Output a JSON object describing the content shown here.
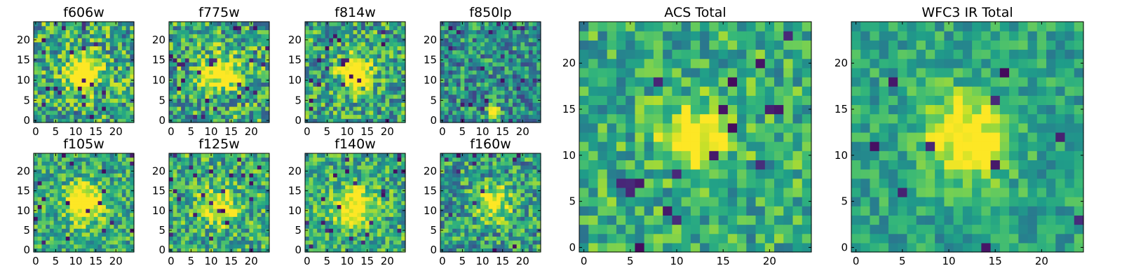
{
  "figure": {
    "background": "#ffffff"
  },
  "colormap": {
    "name": "viridis",
    "stops": [
      "#440154",
      "#482878",
      "#3e4989",
      "#31688e",
      "#26828e",
      "#1f9e89",
      "#35b779",
      "#6ece58",
      "#b5de2b",
      "#fde725"
    ]
  },
  "chart_data": [
    {
      "id": "f606w",
      "type": "heatmap",
      "title": "f606w",
      "grid_size": 25,
      "xticks": [
        0,
        5,
        10,
        15,
        20
      ],
      "yticks": [
        0,
        5,
        10,
        15,
        20
      ],
      "xlim": [
        -0.5,
        24.5
      ],
      "ylim": [
        -0.5,
        24.5
      ],
      "source_x": 12,
      "source_y": 12,
      "peak": 0.75,
      "sigma": 2.8,
      "noise": 0.34,
      "base": 0.6,
      "outliers": 0.035,
      "seed": 11,
      "grid": false
    },
    {
      "id": "f775w",
      "type": "heatmap",
      "title": "f775w",
      "grid_size": 25,
      "xticks": [
        0,
        5,
        10,
        15,
        20
      ],
      "yticks": [
        0,
        5,
        10,
        15,
        20
      ],
      "xlim": [
        -0.5,
        24.5
      ],
      "ylim": [
        -0.5,
        24.5
      ],
      "source_x": 12,
      "source_y": 12,
      "peak": 0.65,
      "sigma": 3.0,
      "noise": 0.34,
      "base": 0.6,
      "outliers": 0.035,
      "seed": 23,
      "grid": false
    },
    {
      "id": "f814w",
      "type": "heatmap",
      "title": "f814w",
      "grid_size": 25,
      "xticks": [
        0,
        5,
        10,
        15,
        20
      ],
      "yticks": [
        0,
        5,
        10,
        15,
        20
      ],
      "xlim": [
        -0.5,
        24.5
      ],
      "ylim": [
        -0.5,
        24.5
      ],
      "source_x": 12,
      "source_y": 12,
      "peak": 0.8,
      "sigma": 2.6,
      "noise": 0.32,
      "base": 0.58,
      "outliers": 0.035,
      "seed": 37,
      "grid": false
    },
    {
      "id": "f850lp",
      "type": "heatmap",
      "title": "f850lp",
      "grid_size": 25,
      "xticks": [
        0,
        5,
        10,
        15,
        20
      ],
      "yticks": [
        0,
        5,
        10,
        15,
        20
      ],
      "xlim": [
        -0.5,
        24.5
      ],
      "ylim": [
        -0.5,
        24.5
      ],
      "source_x": 13,
      "source_y": 2,
      "peak": 0.9,
      "sigma": 1.0,
      "noise": 0.3,
      "base": 0.5,
      "outliers": 0.04,
      "seed": 53,
      "grid": false
    },
    {
      "id": "f105w",
      "type": "heatmap",
      "title": "f105w",
      "grid_size": 25,
      "xticks": [
        0,
        5,
        10,
        15,
        20
      ],
      "yticks": [
        0,
        5,
        10,
        15,
        20
      ],
      "xlim": [
        -0.5,
        24.5
      ],
      "ylim": [
        -0.5,
        24.5
      ],
      "source_x": 12,
      "source_y": 12,
      "peak": 0.7,
      "sigma": 3.2,
      "noise": 0.26,
      "base": 0.6,
      "outliers": 0.025,
      "seed": 61,
      "grid": false
    },
    {
      "id": "f125w",
      "type": "heatmap",
      "title": "f125w",
      "grid_size": 25,
      "xticks": [
        0,
        5,
        10,
        15,
        20
      ],
      "yticks": [
        0,
        5,
        10,
        15,
        20
      ],
      "xlim": [
        -0.5,
        24.5
      ],
      "ylim": [
        -0.5,
        24.5
      ],
      "source_x": 12,
      "source_y": 11,
      "peak": 0.55,
      "sigma": 3.0,
      "noise": 0.3,
      "base": 0.6,
      "outliers": 0.03,
      "seed": 73,
      "grid": false
    },
    {
      "id": "f140w",
      "type": "heatmap",
      "title": "f140w",
      "grid_size": 25,
      "xticks": [
        0,
        5,
        10,
        15,
        20
      ],
      "yticks": [
        0,
        5,
        10,
        15,
        20
      ],
      "xlim": [
        -0.5,
        24.5
      ],
      "ylim": [
        -0.5,
        24.5
      ],
      "source_x": 12,
      "source_y": 11,
      "peak": 0.6,
      "sigma": 3.2,
      "noise": 0.28,
      "base": 0.62,
      "outliers": 0.03,
      "seed": 89,
      "grid": false
    },
    {
      "id": "f160w",
      "type": "heatmap",
      "title": "f160w",
      "grid_size": 25,
      "xticks": [
        0,
        5,
        10,
        15,
        20
      ],
      "yticks": [
        0,
        5,
        10,
        15,
        20
      ],
      "xlim": [
        -0.5,
        24.5
      ],
      "ylim": [
        -0.5,
        24.5
      ],
      "source_x": 13,
      "source_y": 12,
      "peak": 0.5,
      "sigma": 3.0,
      "noise": 0.3,
      "base": 0.55,
      "outliers": 0.03,
      "seed": 97,
      "grid": false
    },
    {
      "id": "acs_total",
      "type": "heatmap",
      "title": "ACS Total",
      "grid_size": 25,
      "xticks": [
        0,
        5,
        10,
        15,
        20
      ],
      "yticks": [
        0,
        5,
        10,
        15,
        20
      ],
      "xlim": [
        -0.5,
        24.5
      ],
      "ylim": [
        -0.5,
        24.5
      ],
      "source_x": 12,
      "source_y": 12,
      "peak": 0.55,
      "sigma": 2.5,
      "noise": 0.24,
      "base": 0.62,
      "outliers": 0.03,
      "seed": 101,
      "grid": false
    },
    {
      "id": "wfc3_ir_total",
      "type": "heatmap",
      "title": "WFC3 IR Total",
      "grid_size": 25,
      "xticks": [
        0,
        5,
        10,
        15,
        20
      ],
      "yticks": [
        0,
        5,
        10,
        15,
        20
      ],
      "xlim": [
        -0.5,
        24.5
      ],
      "ylim": [
        -0.5,
        24.5
      ],
      "source_x": 12,
      "source_y": 12,
      "peak": 0.55,
      "sigma": 3.2,
      "noise": 0.18,
      "base": 0.58,
      "outliers": 0.02,
      "seed": 131,
      "grid": false
    }
  ]
}
